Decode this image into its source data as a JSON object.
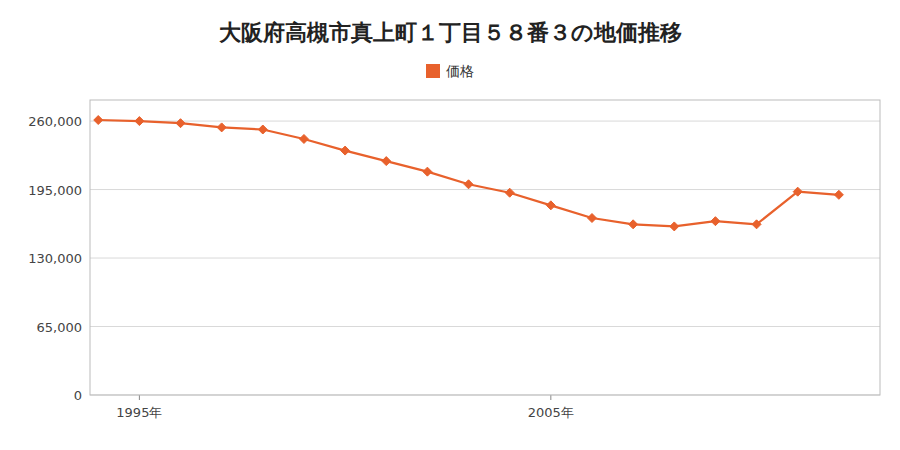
{
  "chart_data": {
    "type": "line",
    "title": "大阪府高槻市真上町１丁目５８番３の地価推移",
    "x": [
      1994,
      1995,
      1996,
      1997,
      1998,
      1999,
      2000,
      2001,
      2002,
      2003,
      2004,
      2005,
      2006,
      2007,
      2008,
      2009,
      2010,
      2011,
      2012
    ],
    "series": [
      {
        "name": "価格",
        "color": "#e8612c",
        "marker": "diamond",
        "values": [
          261000,
          260000,
          258000,
          254000,
          252000,
          243000,
          232000,
          222000,
          212000,
          200000,
          192000,
          180000,
          168000,
          162000,
          160000,
          165000,
          162000,
          193000,
          190000
        ]
      }
    ],
    "xlim": [
      1993.8,
      2013.0
    ],
    "xticks": [
      {
        "value": 1995,
        "label": "1995年"
      },
      {
        "value": 2005,
        "label": "2005年"
      }
    ],
    "ylim": [
      0,
      280000
    ],
    "yticks": [
      0,
      {
        "value": 65000,
        "label": "65,000"
      },
      {
        "value": 130000,
        "label": "130,000"
      },
      {
        "value": 195000,
        "label": "195,000"
      },
      {
        "value": 260000,
        "label": "260,000"
      }
    ],
    "grid": "y",
    "legend": "top"
  }
}
